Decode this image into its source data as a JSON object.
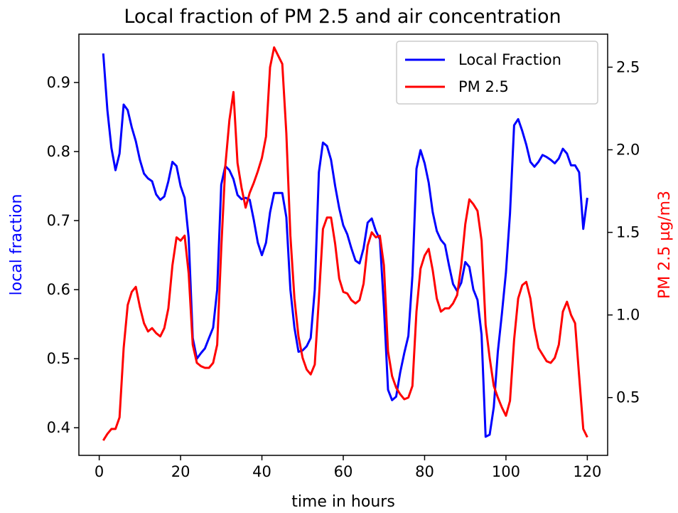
{
  "chart_data": {
    "type": "line",
    "title": "Local fraction of PM 2.5 and air concentration",
    "xlabel": "time in hours",
    "ylabel_left": "local fraction",
    "ylabel_right": "PM 2.5 µg/m3",
    "xlim": [
      -5,
      125
    ],
    "ylim_left": [
      0.36,
      0.97
    ],
    "ylim_right": [
      0.15,
      2.7
    ],
    "x_ticks": [
      0,
      20,
      40,
      60,
      80,
      100,
      120
    ],
    "y_ticks_left": [
      0.4,
      0.5,
      0.6,
      0.7,
      0.8,
      0.9
    ],
    "y_ticks_right": [
      0.5,
      1.0,
      1.5,
      2.0,
      2.5
    ],
    "legend_position": "top-right",
    "grid": false,
    "series": [
      {
        "name": "Local Fraction",
        "axis": "left",
        "color": "#0000ff",
        "x": [
          1,
          2,
          3,
          4,
          5,
          6,
          7,
          8,
          9,
          10,
          11,
          12,
          13,
          14,
          15,
          16,
          17,
          18,
          19,
          20,
          21,
          22,
          23,
          24,
          25,
          26,
          27,
          28,
          29,
          30,
          31,
          32,
          33,
          34,
          35,
          36,
          37,
          38,
          39,
          40,
          41,
          42,
          43,
          44,
          45,
          46,
          47,
          48,
          49,
          50,
          51,
          52,
          53,
          54,
          55,
          56,
          57,
          58,
          59,
          60,
          61,
          62,
          63,
          64,
          65,
          66,
          67,
          68,
          69,
          70,
          71,
          72,
          73,
          74,
          75,
          76,
          77,
          78,
          79,
          80,
          81,
          82,
          83,
          84,
          85,
          86,
          87,
          88,
          89,
          90,
          91,
          92,
          93,
          94,
          95,
          96,
          97,
          98,
          99,
          100,
          101,
          102,
          103,
          104,
          105,
          106,
          107,
          108,
          109,
          110,
          111,
          112,
          113,
          114,
          115,
          116,
          117,
          118,
          119,
          120
        ],
        "values": [
          0.942,
          0.86,
          0.805,
          0.773,
          0.797,
          0.868,
          0.86,
          0.835,
          0.815,
          0.788,
          0.768,
          0.761,
          0.757,
          0.738,
          0.73,
          0.735,
          0.757,
          0.785,
          0.779,
          0.75,
          0.733,
          0.675,
          0.53,
          0.5,
          0.508,
          0.515,
          0.53,
          0.545,
          0.6,
          0.752,
          0.779,
          0.773,
          0.76,
          0.737,
          0.731,
          0.733,
          0.73,
          0.701,
          0.668,
          0.65,
          0.668,
          0.712,
          0.74,
          0.74,
          0.74,
          0.705,
          0.6,
          0.545,
          0.51,
          0.512,
          0.518,
          0.53,
          0.6,
          0.77,
          0.813,
          0.808,
          0.788,
          0.75,
          0.718,
          0.693,
          0.68,
          0.66,
          0.642,
          0.638,
          0.66,
          0.697,
          0.703,
          0.685,
          0.673,
          0.575,
          0.455,
          0.44,
          0.445,
          0.48,
          0.508,
          0.533,
          0.62,
          0.775,
          0.802,
          0.783,
          0.755,
          0.712,
          0.685,
          0.672,
          0.665,
          0.635,
          0.608,
          0.598,
          0.61,
          0.64,
          0.633,
          0.6,
          0.585,
          0.535,
          0.387,
          0.39,
          0.43,
          0.51,
          0.565,
          0.625,
          0.71,
          0.838,
          0.847,
          0.83,
          0.81,
          0.785,
          0.778,
          0.785,
          0.795,
          0.792,
          0.788,
          0.783,
          0.79,
          0.804,
          0.797,
          0.78,
          0.78,
          0.77,
          0.688,
          0.733
        ]
      },
      {
        "name": "PM 2.5",
        "axis": "right",
        "color": "#ff0000",
        "x": [
          1,
          2,
          3,
          4,
          5,
          6,
          7,
          8,
          9,
          10,
          11,
          12,
          13,
          14,
          15,
          16,
          17,
          18,
          19,
          20,
          21,
          22,
          23,
          24,
          25,
          26,
          27,
          28,
          29,
          30,
          31,
          32,
          33,
          34,
          35,
          36,
          37,
          38,
          39,
          40,
          41,
          42,
          43,
          44,
          45,
          46,
          47,
          48,
          49,
          50,
          51,
          52,
          53,
          54,
          55,
          56,
          57,
          58,
          59,
          60,
          61,
          62,
          63,
          64,
          65,
          66,
          67,
          68,
          69,
          70,
          71,
          72,
          73,
          74,
          75,
          76,
          77,
          78,
          79,
          80,
          81,
          82,
          83,
          84,
          85,
          86,
          87,
          88,
          89,
          90,
          91,
          92,
          93,
          94,
          95,
          96,
          97,
          98,
          99,
          100,
          101,
          102,
          103,
          104,
          105,
          106,
          107,
          108,
          109,
          110,
          111,
          112,
          113,
          114,
          115,
          116,
          117,
          118,
          119,
          120
        ],
        "values": [
          0.24,
          0.28,
          0.31,
          0.31,
          0.38,
          0.8,
          1.06,
          1.14,
          1.17,
          1.05,
          0.95,
          0.9,
          0.92,
          0.89,
          0.87,
          0.92,
          1.04,
          1.3,
          1.47,
          1.45,
          1.48,
          1.25,
          0.82,
          0.71,
          0.69,
          0.68,
          0.68,
          0.71,
          0.82,
          1.4,
          1.9,
          2.18,
          2.35,
          1.92,
          1.77,
          1.65,
          1.74,
          1.8,
          1.87,
          1.95,
          2.08,
          2.5,
          2.62,
          2.57,
          2.52,
          2.1,
          1.48,
          1.1,
          0.87,
          0.74,
          0.67,
          0.64,
          0.7,
          1.1,
          1.52,
          1.59,
          1.59,
          1.43,
          1.22,
          1.14,
          1.13,
          1.09,
          1.07,
          1.09,
          1.19,
          1.42,
          1.5,
          1.47,
          1.48,
          1.3,
          0.78,
          0.63,
          0.56,
          0.52,
          0.49,
          0.5,
          0.57,
          1.02,
          1.28,
          1.36,
          1.4,
          1.27,
          1.1,
          1.02,
          1.04,
          1.04,
          1.07,
          1.12,
          1.3,
          1.55,
          1.7,
          1.67,
          1.63,
          1.45,
          0.94,
          0.74,
          0.57,
          0.5,
          0.44,
          0.39,
          0.48,
          0.85,
          1.1,
          1.18,
          1.2,
          1.1,
          0.92,
          0.8,
          0.76,
          0.72,
          0.71,
          0.74,
          0.82,
          1.02,
          1.08,
          1.0,
          0.95,
          0.63,
          0.31,
          0.26
        ]
      }
    ]
  }
}
